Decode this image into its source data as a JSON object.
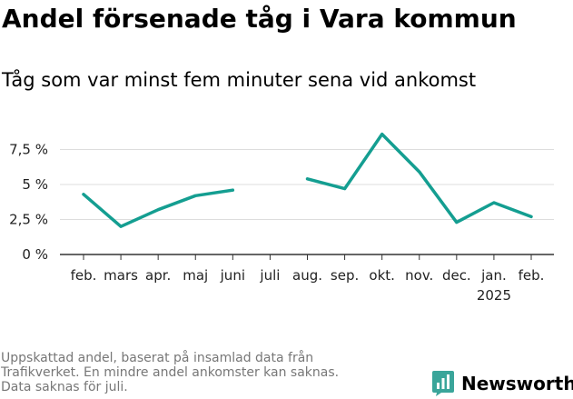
{
  "title": "Andel försenade tåg i Vara kommun",
  "subtitle": "Tåg som var minst fem minuter sena vid ankomst",
  "footnote_lines": [
    "Uppskattad andel, baserat på insamlad data från",
    "Trafikverket. En mindre andel ankomster kan saknas.",
    "Data saknas för juli."
  ],
  "brand": {
    "name": "Newsworthy",
    "color": "#3aa59a",
    "icon": "bar-chart-logo-icon"
  },
  "chart_data": {
    "type": "line",
    "categories": [
      "feb.",
      "mars",
      "apr.",
      "maj",
      "juni",
      "juli",
      "aug.",
      "sep.",
      "okt.",
      "nov.",
      "dec.",
      "jan.",
      "feb."
    ],
    "category_sublabels": [
      "",
      "",
      "",
      "",
      "",
      "",
      "",
      "",
      "",
      "",
      "",
      "2025",
      ""
    ],
    "series": [
      {
        "values": [
          4.3,
          2.0,
          3.2,
          4.2,
          4.6,
          null,
          5.4,
          4.7,
          8.6,
          5.9,
          2.3,
          3.7,
          2.7
        ],
        "color": "#149e91"
      }
    ],
    "y_ticks": [
      0,
      2.5,
      5,
      7.5
    ],
    "y_tick_labels": [
      "0 %",
      "2,5 %",
      "5 %",
      "7,5 %"
    ],
    "ylim": [
      0,
      9
    ],
    "grid": true,
    "xlabel": "",
    "ylabel": ""
  }
}
